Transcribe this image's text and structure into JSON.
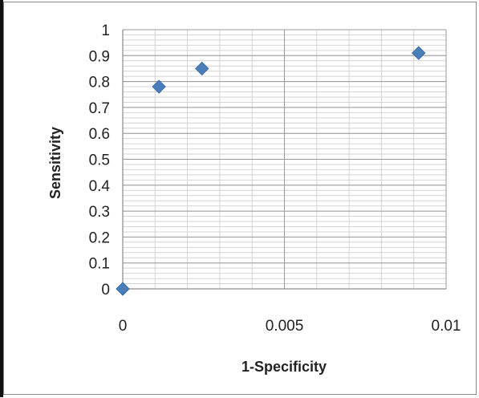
{
  "chart_data": {
    "type": "scatter",
    "title": "",
    "xlabel": "1-Specificity",
    "ylabel": "Sensitivity",
    "xlim": [
      0,
      0.01
    ],
    "ylim": [
      0,
      1
    ],
    "x_ticks": [
      "0",
      "0.005",
      "0.01"
    ],
    "y_ticks": [
      "0",
      "0.1",
      "0.2",
      "0.3",
      "0.4",
      "0.5",
      "0.6",
      "0.7",
      "0.8",
      "0.9",
      "1"
    ],
    "x_major_step": 0.005,
    "x_minor_step": 0.001,
    "y_major_step": 0.1,
    "y_minor_step": 0.02,
    "grid": true,
    "marker": "diamond",
    "marker_color": "#4a7ebb",
    "points": [
      {
        "x": 0.0,
        "y": 0.0
      },
      {
        "x": 0.00112,
        "y": 0.78
      },
      {
        "x": 0.00245,
        "y": 0.85
      },
      {
        "x": 0.00915,
        "y": 0.91
      }
    ]
  }
}
